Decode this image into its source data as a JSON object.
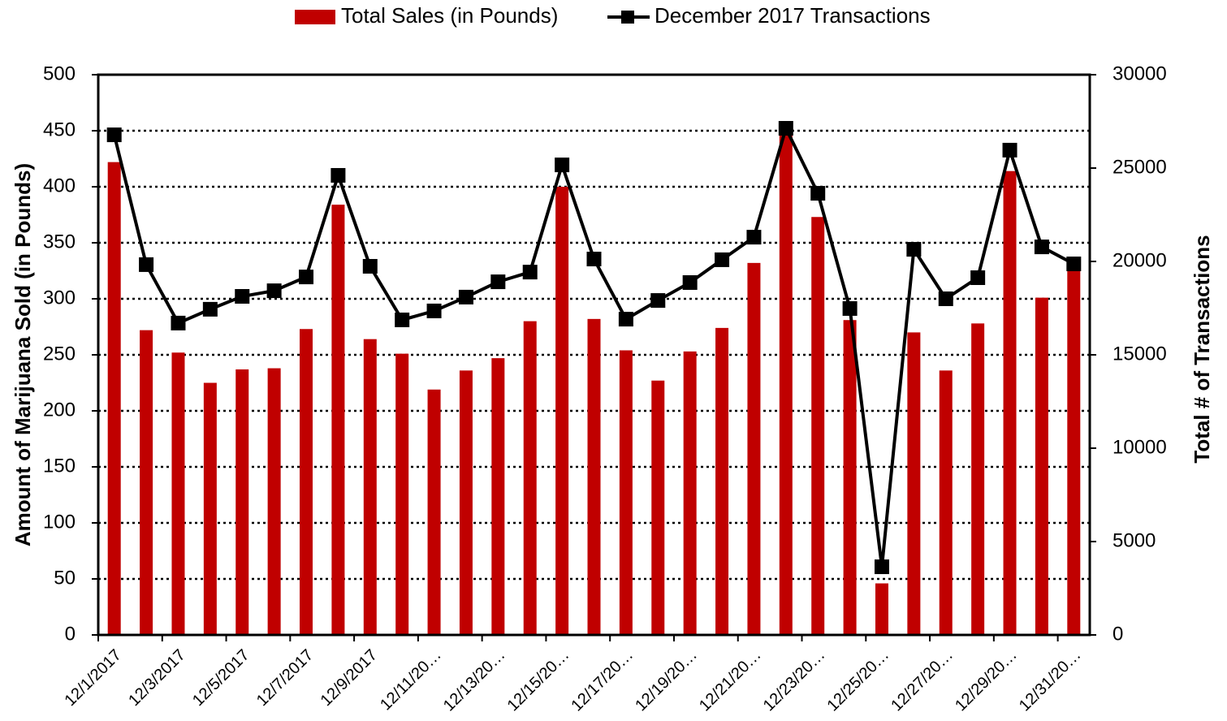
{
  "chart_data": {
    "type": "bar_line",
    "categories": [
      "12/1/2017",
      null,
      "12/3/2017",
      null,
      "12/5/2017",
      null,
      "12/7/2017",
      null,
      "12/9/2017",
      null,
      "12/11/20…",
      null,
      "12/13/20…",
      null,
      "12/15/20…",
      null,
      "12/17/20…",
      null,
      "12/19/20…",
      null,
      "12/21/20…",
      null,
      "12/23/20…",
      null,
      "12/25/20…",
      null,
      "12/27/20…",
      null,
      "12/29/20…",
      null,
      "12/31/20…"
    ],
    "series": [
      {
        "name": "Total Sales (in Pounds)",
        "type": "bar",
        "color": "#c00000",
        "values": [
          422,
          272,
          252,
          225,
          237,
          238,
          273,
          384,
          264,
          251,
          219,
          236,
          247,
          280,
          400,
          282,
          254,
          227,
          253,
          274,
          332,
          451,
          373,
          281,
          46,
          270,
          236,
          278,
          414,
          301,
          326
        ]
      },
      {
        "name": "December 2017 Transactions",
        "type": "line",
        "axis": "y2",
        "color": "#000000",
        "values": [
          26780,
          19830,
          16700,
          17440,
          18130,
          18430,
          19170,
          24610,
          19740,
          16870,
          17350,
          18090,
          18910,
          19430,
          25170,
          20130,
          16910,
          17910,
          18870,
          20090,
          21300,
          27130,
          23650,
          17480,
          3650,
          20650,
          18000,
          19130,
          25960,
          20780,
          19870
        ]
      }
    ],
    "y_label": "Amount of Marijuana Sold (in Pounds)",
    "y2_label": "Total # of Transactions",
    "ylim": [
      0,
      500
    ],
    "yticks": [
      0,
      50,
      100,
      150,
      200,
      250,
      300,
      350,
      400,
      450,
      500
    ],
    "y2lim": [
      0,
      30000
    ],
    "y2ticks": [
      0,
      5000,
      10000,
      15000,
      20000,
      25000,
      30000
    ],
    "grid": true,
    "legend": "top"
  }
}
